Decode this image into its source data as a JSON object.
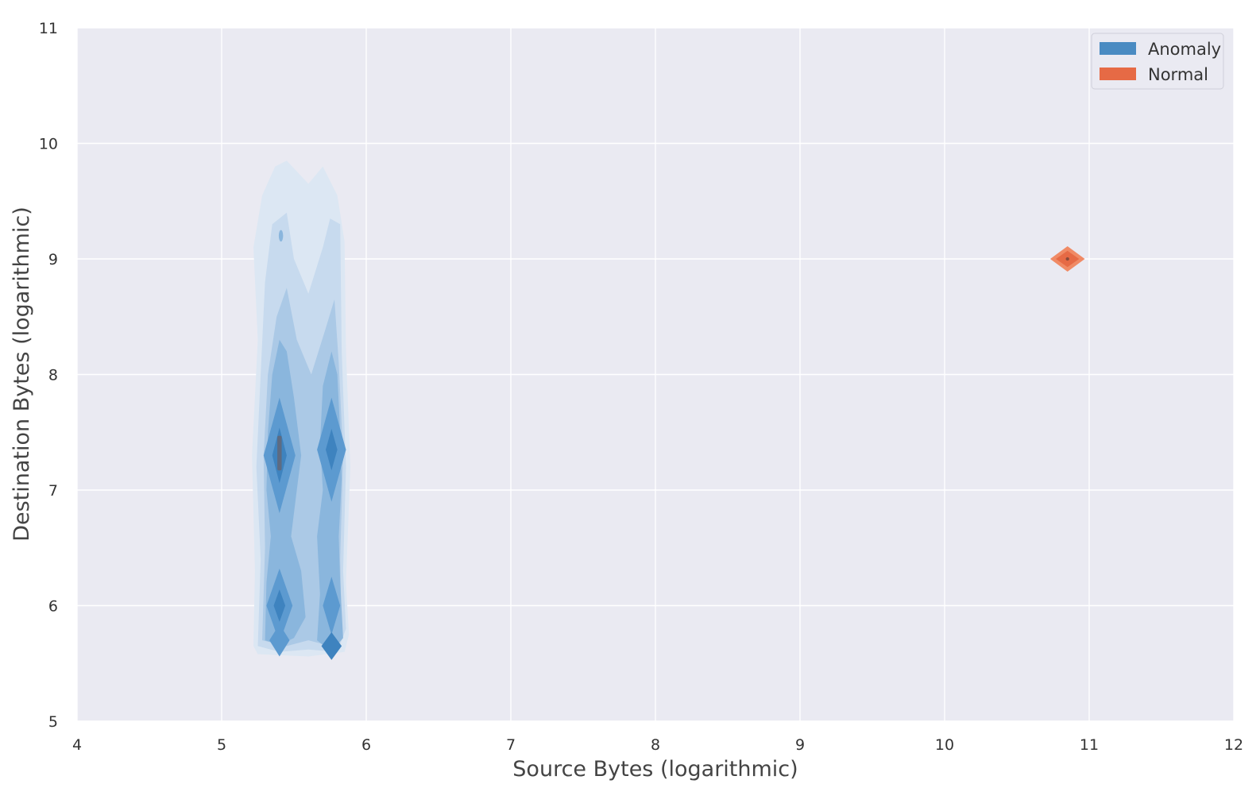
{
  "chart_data": {
    "type": "kde-contour",
    "title": "",
    "xlabel": "Source Bytes (logarithmic)",
    "ylabel": "Destination Bytes (logarithmic)",
    "xlim": [
      4,
      12
    ],
    "ylim": [
      5,
      11
    ],
    "xticks": [
      "4",
      "5",
      "6",
      "7",
      "8",
      "9",
      "10",
      "11",
      "12"
    ],
    "yticks": [
      "5",
      "6",
      "7",
      "8",
      "9",
      "10",
      "11"
    ],
    "grid": true,
    "legend_position": "top-right",
    "series": [
      {
        "name": "Anomaly",
        "color": "#4a8bc2",
        "x_range": [
          5.2,
          5.9
        ],
        "y_range": [
          5.6,
          9.85
        ],
        "modes": [
          {
            "x": 5.4,
            "y": 7.3
          },
          {
            "x": 5.76,
            "y": 7.35
          },
          {
            "x": 5.4,
            "y": 6.0
          },
          {
            "x": 5.76,
            "y": 6.0
          },
          {
            "x": 5.4,
            "y": 5.7
          },
          {
            "x": 5.76,
            "y": 5.65
          },
          {
            "x": 5.4,
            "y": 9.2
          }
        ]
      },
      {
        "name": "Normal",
        "color": "#e66a45",
        "modes": [
          {
            "x": 10.85,
            "y": 9.0
          }
        ]
      }
    ]
  }
}
